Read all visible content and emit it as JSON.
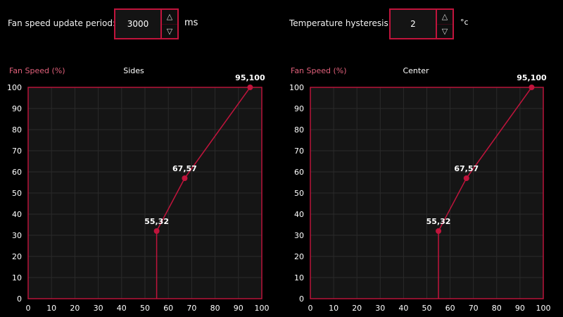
{
  "controls": {
    "update_period": {
      "label": "Fan speed update period:",
      "value": "3000",
      "unit": "ms",
      "up_icon": "triangle-up-icon",
      "down_icon": "triangle-down-icon"
    },
    "hysteresis": {
      "label": "Temperature hysteresis:",
      "value": "2",
      "unit": "°c",
      "up_icon": "triangle-up-icon",
      "down_icon": "triangle-down-icon"
    }
  },
  "chart_data": [
    {
      "type": "line",
      "title": "Sides",
      "ylabel": "Fan Speed (%)",
      "xlabel": "",
      "xlim": [
        0,
        100
      ],
      "ylim": [
        0,
        100
      ],
      "x_ticks": [
        0,
        10,
        20,
        30,
        40,
        50,
        60,
        70,
        80,
        90,
        100
      ],
      "y_ticks": [
        0,
        10,
        20,
        30,
        40,
        50,
        60,
        70,
        80,
        90,
        100
      ],
      "grid": true,
      "points": [
        {
          "x": 55,
          "y": 32,
          "label": "55,32"
        },
        {
          "x": 67,
          "y": 57,
          "label": "67,57"
        },
        {
          "x": 95,
          "y": 100,
          "label": "95,100"
        }
      ],
      "line_color": "#c0143c"
    },
    {
      "type": "line",
      "title": "Center",
      "ylabel": "Fan Speed (%)",
      "xlabel": "",
      "xlim": [
        0,
        100
      ],
      "ylim": [
        0,
        100
      ],
      "x_ticks": [
        0,
        10,
        20,
        30,
        40,
        50,
        60,
        70,
        80,
        90,
        100
      ],
      "y_ticks": [
        0,
        10,
        20,
        30,
        40,
        50,
        60,
        70,
        80,
        90,
        100
      ],
      "grid": true,
      "points": [
        {
          "x": 55,
          "y": 32,
          "label": "55,32"
        },
        {
          "x": 67,
          "y": 57,
          "label": "67,57"
        },
        {
          "x": 95,
          "y": 100,
          "label": "95,100"
        }
      ],
      "line_color": "#c0143c"
    }
  ]
}
